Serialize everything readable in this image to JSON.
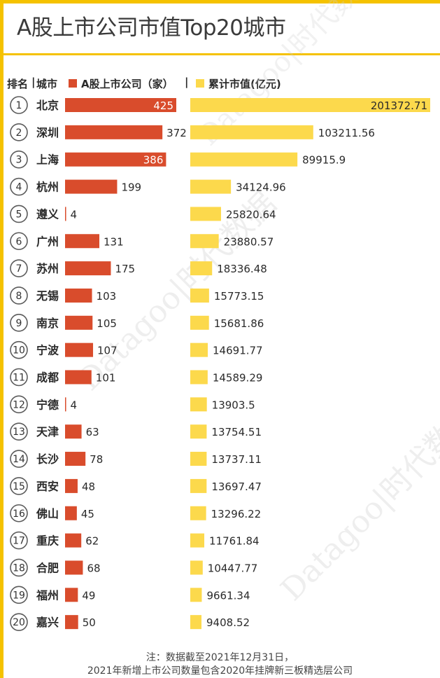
{
  "title": "A股上市公司市值Top20城市",
  "legend": {
    "rank_label": "排名",
    "city_label": "城市",
    "companies_label": "A股上市公司（家）",
    "market_value_label": "累计市值(亿元)"
  },
  "colors": {
    "companies": "#d94c2c",
    "market_value": "#fcd94c",
    "accent": "#f5c200",
    "rank_circle": "#5b5b5b"
  },
  "chart_data": {
    "type": "bar",
    "title": "A股上市公司市值Top20城市",
    "categories": [
      "北京",
      "深圳",
      "上海",
      "杭州",
      "遵义",
      "广州",
      "苏州",
      "无锡",
      "南京",
      "宁波",
      "成都",
      "宁德",
      "天津",
      "长沙",
      "西安",
      "佛山",
      "重庆",
      "合肥",
      "福州",
      "嘉兴"
    ],
    "ranks": [
      1,
      2,
      3,
      4,
      5,
      6,
      7,
      8,
      9,
      10,
      11,
      12,
      13,
      14,
      15,
      16,
      17,
      18,
      19,
      20
    ],
    "series": [
      {
        "name": "A股上市公司（家）",
        "values": [
          425,
          372,
          386,
          199,
          4,
          131,
          175,
          103,
          105,
          107,
          101,
          4,
          63,
          78,
          48,
          45,
          62,
          68,
          49,
          50
        ]
      },
      {
        "name": "累计市值(亿元)",
        "value_labels": [
          "201372.71",
          "103211.56",
          "89915.9",
          "34124.96",
          "25820.64",
          "23880.57",
          "18336.48",
          "15773.15",
          "15681.86",
          "14691.77",
          "14589.29",
          "13903.5",
          "13754.51",
          "13737.11",
          "13697.47",
          "13296.22",
          "11761.84",
          "10447.77",
          "9661.34",
          "9408.52"
        ]
      }
    ]
  },
  "watermark": "Datagoo|时代数据",
  "footnote": {
    "line1": "注：数据截至2021年12月31日，",
    "line2": "2021年新增上市公司数量包含2020年挂牌新三板精选层公司"
  }
}
